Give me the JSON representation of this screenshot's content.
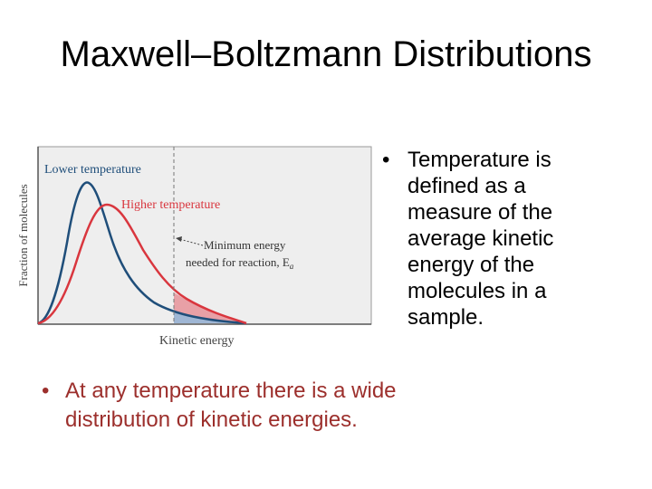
{
  "slide": {
    "title": "Maxwell–Boltzmann Distributions",
    "bullet_right": "Temperature is defined as a measure of the average kinetic energy of the molecules in a sample.",
    "bullet_bottom": "At any temperature there is a wide distribution of kinetic energies."
  },
  "figure": {
    "y_axis_label": "Fraction of molecules",
    "x_axis_label": "Kinetic energy",
    "lower_temp_label": "Lower temperature",
    "higher_temp_label": "Higher temperature",
    "min_energy_line1": "Minimum energy",
    "min_energy_line2": "needed for reaction, E",
    "min_energy_subscript": "a",
    "colors": {
      "lower_temp": "#1f4e7a",
      "higher_temp": "#d9363e",
      "panel_bg": "#eeeeee",
      "blue_fill": "#9fb6d4",
      "pink_fill": "#e8a0a6"
    }
  }
}
